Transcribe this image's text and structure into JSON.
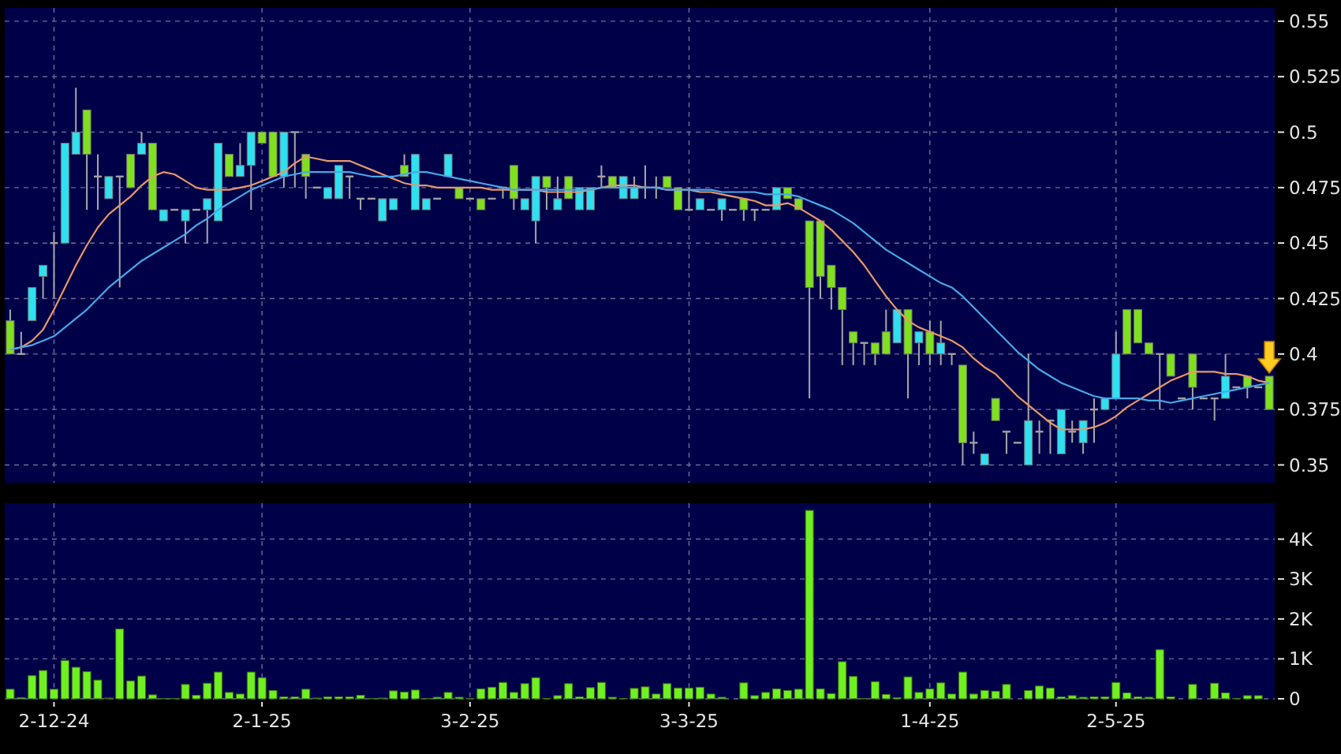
{
  "chart_data": [
    {
      "type": "candlestick",
      "categories": [
        null,
        null,
        null,
        null,
        null,
        null,
        null,
        null,
        null,
        null,
        null,
        null,
        null,
        null,
        null,
        null,
        null,
        null,
        null,
        null,
        null,
        null,
        null,
        null,
        null,
        null,
        null,
        null,
        null,
        null,
        null,
        null,
        null,
        null,
        null,
        null,
        null,
        null,
        null,
        null,
        null,
        null,
        null,
        null,
        null,
        null,
        null,
        null,
        null,
        null,
        null,
        null,
        null,
        null,
        null,
        null,
        null,
        null,
        null,
        null,
        null,
        null,
        null,
        null,
        null,
        null,
        null,
        null,
        null,
        null,
        null,
        null,
        null,
        null,
        null,
        null,
        null,
        null,
        null,
        null,
        null,
        null,
        null,
        null,
        null,
        null,
        null,
        null,
        null,
        null,
        null,
        null,
        null,
        null,
        null,
        null,
        null,
        null,
        null,
        null,
        null,
        null,
        null,
        null,
        null,
        null,
        null,
        null,
        null,
        null,
        null,
        null,
        null,
        null,
        null,
        null
      ],
      "ohlc": [
        [
          0.415,
          0.42,
          0.4,
          0.4
        ],
        [
          0.4,
          0.41,
          0.4,
          0.4
        ],
        [
          0.415,
          0.43,
          0.415,
          0.43
        ],
        [
          0.435,
          0.44,
          0.425,
          0.44
        ],
        [
          0.45,
          0.455,
          0.425,
          0.45
        ],
        [
          0.45,
          0.495,
          0.45,
          0.495
        ],
        [
          0.49,
          0.52,
          0.49,
          0.5
        ],
        [
          0.51,
          0.51,
          0.465,
          0.49
        ],
        [
          0.48,
          0.49,
          0.465,
          0.48
        ],
        [
          0.47,
          0.48,
          0.47,
          0.48
        ],
        [
          0.48,
          0.48,
          0.43,
          0.48
        ],
        [
          0.49,
          0.49,
          0.475,
          0.475
        ],
        [
          0.49,
          0.5,
          0.49,
          0.495
        ],
        [
          0.495,
          0.495,
          0.465,
          0.465
        ],
        [
          0.46,
          0.465,
          0.46,
          0.465
        ],
        [
          0.465,
          0.465,
          0.465,
          0.465
        ],
        [
          0.46,
          0.465,
          0.45,
          0.465
        ],
        [
          0.465,
          0.465,
          0.465,
          0.465
        ],
        [
          0.465,
          0.47,
          0.45,
          0.47
        ],
        [
          0.46,
          0.495,
          0.46,
          0.495
        ],
        [
          0.49,
          0.49,
          0.48,
          0.48
        ],
        [
          0.48,
          0.495,
          0.48,
          0.485
        ],
        [
          0.485,
          0.5,
          0.465,
          0.5
        ],
        [
          0.5,
          0.5,
          0.495,
          0.495
        ],
        [
          0.5,
          0.5,
          0.48,
          0.48
        ],
        [
          0.48,
          0.5,
          0.475,
          0.5
        ],
        [
          0.5,
          0.5,
          0.475,
          0.5
        ],
        [
          0.49,
          0.49,
          0.47,
          0.48
        ],
        [
          0.475,
          0.475,
          0.475,
          0.475
        ],
        [
          0.47,
          0.475,
          0.47,
          0.475
        ],
        [
          0.47,
          0.485,
          0.47,
          0.485
        ],
        [
          0.48,
          0.48,
          0.47,
          0.48
        ],
        [
          0.47,
          0.47,
          0.465,
          0.47
        ],
        [
          0.47,
          0.47,
          0.47,
          0.47
        ],
        [
          0.46,
          0.47,
          0.46,
          0.47
        ],
        [
          0.465,
          0.47,
          0.465,
          0.47
        ],
        [
          0.485,
          0.49,
          0.48,
          0.48
        ],
        [
          0.465,
          0.49,
          0.465,
          0.49
        ],
        [
          0.465,
          0.47,
          0.465,
          0.47
        ],
        [
          0.47,
          0.47,
          0.47,
          0.47
        ],
        [
          0.48,
          0.49,
          0.48,
          0.49
        ],
        [
          0.475,
          0.475,
          0.47,
          0.47
        ],
        [
          0.47,
          0.47,
          0.47,
          0.47
        ],
        [
          0.47,
          0.47,
          0.465,
          0.465
        ],
        [
          0.47,
          0.47,
          0.47,
          0.47
        ],
        [
          0.475,
          0.475,
          0.47,
          0.475
        ],
        [
          0.485,
          0.485,
          0.465,
          0.47
        ],
        [
          0.465,
          0.47,
          0.465,
          0.47
        ],
        [
          0.46,
          0.48,
          0.45,
          0.48
        ],
        [
          0.48,
          0.48,
          0.465,
          0.475
        ],
        [
          0.465,
          0.48,
          0.465,
          0.47
        ],
        [
          0.48,
          0.48,
          0.47,
          0.47
        ],
        [
          0.465,
          0.475,
          0.465,
          0.475
        ],
        [
          0.465,
          0.475,
          0.465,
          0.475
        ],
        [
          0.48,
          0.485,
          0.475,
          0.48
        ],
        [
          0.48,
          0.48,
          0.475,
          0.475
        ],
        [
          0.47,
          0.48,
          0.47,
          0.48
        ],
        [
          0.47,
          0.48,
          0.47,
          0.475
        ],
        [
          0.475,
          0.485,
          0.47,
          0.475
        ],
        [
          0.475,
          0.48,
          0.47,
          0.475
        ],
        [
          0.48,
          0.48,
          0.475,
          0.475
        ],
        [
          0.475,
          0.475,
          0.465,
          0.465
        ],
        [
          0.465,
          0.475,
          0.465,
          0.465
        ],
        [
          0.465,
          0.47,
          0.465,
          0.47
        ],
        [
          0.465,
          0.465,
          0.465,
          0.465
        ],
        [
          0.465,
          0.47,
          0.46,
          0.47
        ],
        [
          0.465,
          0.465,
          0.465,
          0.465
        ],
        [
          0.47,
          0.47,
          0.46,
          0.465
        ],
        [
          0.465,
          0.465,
          0.46,
          0.465
        ],
        [
          0.465,
          0.465,
          0.465,
          0.465
        ],
        [
          0.465,
          0.475,
          0.465,
          0.475
        ],
        [
          0.475,
          0.475,
          0.47,
          0.47
        ],
        [
          0.47,
          0.47,
          0.465,
          0.465
        ],
        [
          0.46,
          0.46,
          0.38,
          0.43
        ],
        [
          0.46,
          0.46,
          0.425,
          0.435
        ],
        [
          0.44,
          0.44,
          0.42,
          0.43
        ],
        [
          0.43,
          0.43,
          0.395,
          0.42
        ],
        [
          0.41,
          0.41,
          0.395,
          0.405
        ],
        [
          0.405,
          0.405,
          0.395,
          0.405
        ],
        [
          0.405,
          0.405,
          0.395,
          0.4
        ],
        [
          0.41,
          0.42,
          0.4,
          0.4
        ],
        [
          0.405,
          0.42,
          0.405,
          0.42
        ],
        [
          0.42,
          0.42,
          0.38,
          0.4
        ],
        [
          0.405,
          0.41,
          0.395,
          0.41
        ],
        [
          0.41,
          0.415,
          0.395,
          0.4
        ],
        [
          0.4,
          0.415,
          0.395,
          0.405
        ],
        [
          0.4,
          0.4,
          0.395,
          0.4
        ],
        [
          0.395,
          0.395,
          0.35,
          0.36
        ],
        [
          0.36,
          0.365,
          0.355,
          0.36
        ],
        [
          0.35,
          0.355,
          0.35,
          0.355
        ],
        [
          0.38,
          0.38,
          0.37,
          0.37
        ],
        [
          0.365,
          0.365,
          0.355,
          0.365
        ],
        [
          0.36,
          0.36,
          0.36,
          0.36
        ],
        [
          0.35,
          0.4,
          0.35,
          0.37
        ],
        [
          0.365,
          0.37,
          0.355,
          0.365
        ],
        [
          0.37,
          0.37,
          0.355,
          0.37
        ],
        [
          0.355,
          0.375,
          0.355,
          0.375
        ],
        [
          0.365,
          0.37,
          0.36,
          0.365
        ],
        [
          0.36,
          0.37,
          0.355,
          0.37
        ],
        [
          0.375,
          0.38,
          0.36,
          0.375
        ],
        [
          0.375,
          0.38,
          0.375,
          0.38
        ],
        [
          0.38,
          0.41,
          0.38,
          0.4
        ],
        [
          0.42,
          0.42,
          0.4,
          0.4
        ],
        [
          0.42,
          0.42,
          0.405,
          0.405
        ],
        [
          0.405,
          0.405,
          0.4,
          0.4
        ],
        [
          0.4,
          0.4,
          0.375,
          0.4
        ],
        [
          0.4,
          0.4,
          0.39,
          0.39
        ],
        [
          0.38,
          0.38,
          0.38,
          0.38
        ],
        [
          0.4,
          0.4,
          0.375,
          0.385
        ],
        [
          0.38,
          0.38,
          0.38,
          0.38
        ],
        [
          0.38,
          0.38,
          0.37,
          0.38
        ],
        [
          0.38,
          0.4,
          0.38,
          0.39
        ],
        [
          0.385,
          0.385,
          0.385,
          0.385
        ],
        [
          0.39,
          0.39,
          0.38,
          0.385
        ],
        [
          0.385,
          0.385,
          0.385,
          0.385
        ],
        [
          0.39,
          0.39,
          0.375,
          0.375
        ]
      ],
      "colors": [
        "#80e020",
        "#a0a0a0",
        "#30e0f0",
        "#30e0f0",
        "#a0a0a0",
        "#30e0f0",
        "#30e0f0",
        "#80e020",
        "#a0a0a0",
        "#30e0f0",
        "#a0a0a0",
        "#80e020",
        "#30e0f0",
        "#80e020",
        "#30e0f0",
        "#a0a0a0",
        "#30e0f0",
        "#a0a0a0",
        "#30e0f0",
        "#30e0f0",
        "#80e020",
        "#30e0f0",
        "#30e0f0",
        "#80e020",
        "#80e020",
        "#30e0f0",
        "#a0a0a0",
        "#80e020",
        "#a0a0a0",
        "#30e0f0",
        "#30e0f0",
        "#a0a0a0",
        "#a0a0a0",
        "#a0a0a0",
        "#30e0f0",
        "#30e0f0",
        "#80e020",
        "#30e0f0",
        "#30e0f0",
        "#a0a0a0",
        "#30e0f0",
        "#80e020",
        "#a0a0a0",
        "#80e020",
        "#a0a0a0",
        "#a0a0a0",
        "#80e020",
        "#30e0f0",
        "#30e0f0",
        "#80e020",
        "#30e0f0",
        "#80e020",
        "#30e0f0",
        "#30e0f0",
        "#a0a0a0",
        "#80e020",
        "#30e0f0",
        "#30e0f0",
        "#a0a0a0",
        "#a0a0a0",
        "#80e020",
        "#80e020",
        "#a0a0a0",
        "#30e0f0",
        "#a0a0a0",
        "#30e0f0",
        "#a0a0a0",
        "#80e020",
        "#a0a0a0",
        "#a0a0a0",
        "#30e0f0",
        "#80e020",
        "#80e020",
        "#80e020",
        "#80e020",
        "#80e020",
        "#80e020",
        "#80e020",
        "#a0a0a0",
        "#80e020",
        "#80e020",
        "#30e0f0",
        "#80e020",
        "#30e0f0",
        "#80e020",
        "#30e0f0",
        "#a0a0a0",
        "#80e020",
        "#a0a0a0",
        "#30e0f0",
        "#80e020",
        "#a0a0a0",
        "#a0a0a0",
        "#30e0f0",
        "#a0a0a0",
        "#a0a0a0",
        "#30e0f0",
        "#a0a0a0",
        "#30e0f0",
        "#a0a0a0",
        "#30e0f0",
        "#30e0f0",
        "#80e020",
        "#80e020",
        "#80e020",
        "#a0a0a0",
        "#80e020",
        "#a0a0a0",
        "#80e020",
        "#a0a0a0",
        "#a0a0a0",
        "#30e0f0",
        "#a0a0a0",
        "#80e020",
        "#a0a0a0",
        "#80e020"
      ],
      "series": [
        {
          "type": "line",
          "color": "#e89868",
          "values": [
            0.402,
            0.403,
            0.406,
            0.411,
            0.42,
            0.43,
            0.44,
            0.449,
            0.457,
            0.463,
            0.467,
            0.471,
            0.476,
            0.48,
            0.482,
            0.481,
            0.478,
            0.475,
            0.474,
            0.474,
            0.474,
            0.475,
            0.476,
            0.478,
            0.48,
            0.482,
            0.486,
            0.489,
            0.488,
            0.487,
            0.487,
            0.487,
            0.485,
            0.483,
            0.481,
            0.479,
            0.477,
            0.476,
            0.476,
            0.475,
            0.475,
            0.475,
            0.475,
            0.475,
            0.474,
            0.474,
            0.474,
            0.474,
            0.474,
            0.473,
            0.473,
            0.473,
            0.473,
            0.474,
            0.475,
            0.476,
            0.476,
            0.476,
            0.475,
            0.475,
            0.474,
            0.474,
            0.474,
            0.473,
            0.473,
            0.472,
            0.471,
            0.47,
            0.469,
            0.467,
            0.467,
            0.468,
            0.466,
            0.463,
            0.46,
            0.456,
            0.451,
            0.446,
            0.44,
            0.433,
            0.426,
            0.42,
            0.415,
            0.412,
            0.41,
            0.408,
            0.406,
            0.403,
            0.398,
            0.394,
            0.391,
            0.386,
            0.381,
            0.377,
            0.373,
            0.369,
            0.366,
            0.366,
            0.366,
            0.367,
            0.369,
            0.372,
            0.376,
            0.379,
            0.382,
            0.385,
            0.388,
            0.39,
            0.392,
            0.392,
            0.392,
            0.391,
            0.391,
            0.39,
            0.388,
            0.387
          ]
        },
        {
          "type": "line",
          "color": "#48a8e8",
          "values": [
            0.402,
            0.403,
            0.404,
            0.406,
            0.408,
            0.412,
            0.416,
            0.42,
            0.425,
            0.43,
            0.434,
            0.438,
            0.442,
            0.445,
            0.448,
            0.451,
            0.454,
            0.458,
            0.461,
            0.465,
            0.468,
            0.471,
            0.474,
            0.476,
            0.478,
            0.48,
            0.481,
            0.482,
            0.482,
            0.482,
            0.482,
            0.482,
            0.481,
            0.48,
            0.48,
            0.48,
            0.481,
            0.482,
            0.482,
            0.481,
            0.48,
            0.479,
            0.478,
            0.477,
            0.476,
            0.475,
            0.474,
            0.474,
            0.474,
            0.474,
            0.474,
            0.474,
            0.474,
            0.474,
            0.475,
            0.475,
            0.475,
            0.475,
            0.475,
            0.475,
            0.474,
            0.474,
            0.474,
            0.474,
            0.474,
            0.473,
            0.473,
            0.473,
            0.473,
            0.472,
            0.472,
            0.472,
            0.471,
            0.469,
            0.467,
            0.465,
            0.462,
            0.459,
            0.455,
            0.451,
            0.447,
            0.444,
            0.441,
            0.438,
            0.435,
            0.432,
            0.43,
            0.426,
            0.421,
            0.416,
            0.411,
            0.406,
            0.401,
            0.397,
            0.393,
            0.39,
            0.387,
            0.385,
            0.383,
            0.381,
            0.38,
            0.38,
            0.38,
            0.38,
            0.379,
            0.379,
            0.378,
            0.379,
            0.38,
            0.381,
            0.382,
            0.383,
            0.384,
            0.385,
            0.386,
            0.387
          ]
        }
      ],
      "ylim": [
        0.342,
        0.556
      ],
      "yticks": [
        0.35,
        0.375,
        0.4,
        0.425,
        0.45,
        0.475,
        0.5,
        0.525,
        0.55
      ],
      "grid": true,
      "tick_labels": "y"
    },
    {
      "type": "bar",
      "categories": [
        null,
        null,
        null,
        null,
        "2-12-24",
        null,
        null,
        null,
        null,
        null,
        null,
        null,
        null,
        null,
        null,
        null,
        null,
        null,
        null,
        null,
        null,
        null,
        null,
        "2-1-25",
        null,
        null,
        null,
        null,
        null,
        null,
        null,
        null,
        null,
        null,
        null,
        null,
        null,
        null,
        null,
        null,
        null,
        null,
        "3-2-25",
        null,
        null,
        null,
        null,
        null,
        null,
        null,
        null,
        null,
        null,
        null,
        null,
        null,
        null,
        null,
        null,
        null,
        null,
        null,
        "3-3-25",
        null,
        null,
        null,
        null,
        null,
        null,
        null,
        null,
        null,
        null,
        null,
        null,
        null,
        null,
        null,
        null,
        null,
        null,
        null,
        null,
        null,
        "1-4-25",
        null,
        null,
        null,
        null,
        null,
        null,
        null,
        null,
        null,
        null,
        null,
        null,
        null,
        null,
        null,
        null,
        "2-5-25",
        null,
        null,
        null,
        null,
        null,
        null,
        null,
        null,
        null,
        null,
        null,
        null,
        null,
        null
      ],
      "values": [
        240,
        30,
        580,
        710,
        240,
        960,
        790,
        680,
        470,
        20,
        1750,
        450,
        570,
        100,
        10,
        10,
        360,
        90,
        390,
        670,
        160,
        120,
        670,
        530,
        210,
        50,
        50,
        240,
        20,
        50,
        50,
        50,
        90,
        10,
        20,
        200,
        170,
        220,
        10,
        40,
        160,
        40,
        10,
        250,
        290,
        410,
        160,
        380,
        530,
        10,
        80,
        380,
        50,
        280,
        410,
        40,
        10,
        260,
        300,
        120,
        380,
        270,
        270,
        290,
        120,
        40,
        0,
        400,
        80,
        160,
        250,
        210,
        240,
        4720,
        250,
        130,
        930,
        560,
        10,
        430,
        110,
        30,
        550,
        160,
        250,
        400,
        120,
        670,
        120,
        210,
        190,
        360,
        0,
        210,
        320,
        270,
        50,
        80,
        40,
        50,
        50,
        410,
        150,
        50,
        40,
        1230,
        50,
        0,
        360,
        0,
        390,
        150,
        10,
        80,
        80,
        0
      ],
      "color": "#70f020",
      "ylim": [
        0,
        4900
      ],
      "yticks": [
        0,
        {
          "value": 1000,
          "label": "1K"
        },
        {
          "value": 2000,
          "label": "2K"
        },
        {
          "value": 3000,
          "label": "3K"
        },
        {
          "value": 4000,
          "label": "4K"
        }
      ],
      "grid": true
    }
  ]
}
